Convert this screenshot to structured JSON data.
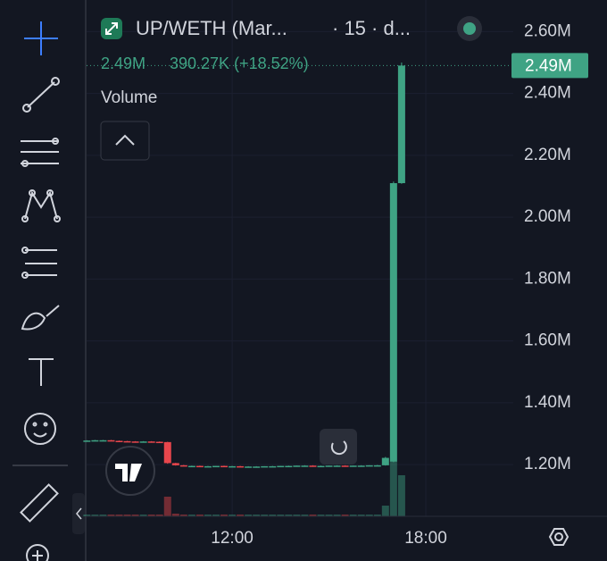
{
  "chart_data": {
    "type": "candlestick",
    "title": "UP/WETH (Mar...",
    "subtitle": "· 15 · d...",
    "change_label": "390.27K (+18.52%)",
    "last_price": {
      "value": 2.49,
      "label": "2.49M"
    },
    "up_color": "#3fa384",
    "down_color": "#e8464c",
    "x": [
      7.5,
      7.75,
      8,
      8.25,
      8.5,
      8.75,
      9,
      9.25,
      9.5,
      9.75,
      10,
      10.25,
      10.5,
      10.75,
      11,
      11.25,
      11.5,
      11.75,
      12,
      12.25,
      12.5,
      12.75,
      13,
      13.25,
      13.5,
      13.75,
      14,
      14.25,
      14.5,
      14.75,
      15,
      15.25,
      15.5,
      15.75,
      16,
      16.25,
      16.5,
      16.75,
      17,
      17.25
    ],
    "open": [
      1.276,
      1.278,
      1.279,
      1.279,
      1.277,
      1.276,
      1.275,
      1.274,
      1.275,
      1.274,
      1.273,
      1.205,
      1.198,
      1.196,
      1.196,
      1.195,
      1.195,
      1.196,
      1.195,
      1.195,
      1.194,
      1.194,
      1.194,
      1.195,
      1.195,
      1.196,
      1.196,
      1.197,
      1.197,
      1.196,
      1.196,
      1.197,
      1.197,
      1.196,
      1.197,
      1.197,
      1.198,
      1.198,
      1.21,
      2.11
    ],
    "high": [
      1.279,
      1.28,
      1.28,
      1.28,
      1.278,
      1.277,
      1.276,
      1.276,
      1.276,
      1.275,
      1.274,
      1.206,
      1.199,
      1.197,
      1.197,
      1.196,
      1.196,
      1.197,
      1.196,
      1.196,
      1.195,
      1.195,
      1.195,
      1.196,
      1.196,
      1.197,
      1.197,
      1.198,
      1.198,
      1.197,
      1.197,
      1.198,
      1.198,
      1.197,
      1.198,
      1.198,
      1.199,
      1.225,
      2.115,
      2.5
    ],
    "low": [
      1.275,
      1.277,
      1.278,
      1.276,
      1.275,
      1.274,
      1.273,
      1.273,
      1.273,
      1.272,
      1.203,
      1.197,
      1.195,
      1.195,
      1.194,
      1.194,
      1.194,
      1.195,
      1.194,
      1.193,
      1.193,
      1.193,
      1.193,
      1.194,
      1.194,
      1.195,
      1.195,
      1.196,
      1.196,
      1.195,
      1.195,
      1.196,
      1.196,
      1.195,
      1.196,
      1.196,
      1.197,
      1.197,
      1.208,
      2.108
    ],
    "close": [
      1.278,
      1.279,
      1.279,
      1.277,
      1.276,
      1.275,
      1.274,
      1.275,
      1.274,
      1.273,
      1.205,
      1.198,
      1.196,
      1.196,
      1.195,
      1.195,
      1.196,
      1.195,
      1.195,
      1.194,
      1.194,
      1.194,
      1.195,
      1.195,
      1.196,
      1.196,
      1.197,
      1.197,
      1.196,
      1.196,
      1.197,
      1.197,
      1.196,
      1.197,
      1.197,
      1.198,
      1.198,
      1.222,
      2.11,
      2.49
    ],
    "volume": {
      "title": "Volume",
      "values": [
        2,
        2,
        2,
        2,
        2,
        2,
        2,
        2,
        2,
        2,
        22,
        3,
        2,
        2,
        2,
        2,
        2,
        2,
        2,
        2,
        2,
        2,
        2,
        2,
        2,
        2,
        2,
        2,
        2,
        2,
        2,
        2,
        2,
        2,
        2,
        2,
        2,
        12,
        62,
        46
      ]
    },
    "xlim": [
      7.49,
      20.71
    ],
    "xticks": [
      {
        "value": 12,
        "label": "12:00"
      },
      {
        "value": 18,
        "label": "18:00"
      }
    ],
    "ylim": [
      1.033,
      2.702
    ],
    "yticks": [
      {
        "value": 2.6,
        "label": "2.60M"
      },
      {
        "value": 2.4,
        "label": "2.40M"
      },
      {
        "value": 2.2,
        "label": "2.20M"
      },
      {
        "value": 2.0,
        "label": "2.00M"
      },
      {
        "value": 1.8,
        "label": "1.80M"
      },
      {
        "value": 1.6,
        "label": "1.60M"
      },
      {
        "value": 1.4,
        "label": "1.40M"
      },
      {
        "value": 1.2,
        "label": "1.20M"
      }
    ],
    "grid": true
  }
}
